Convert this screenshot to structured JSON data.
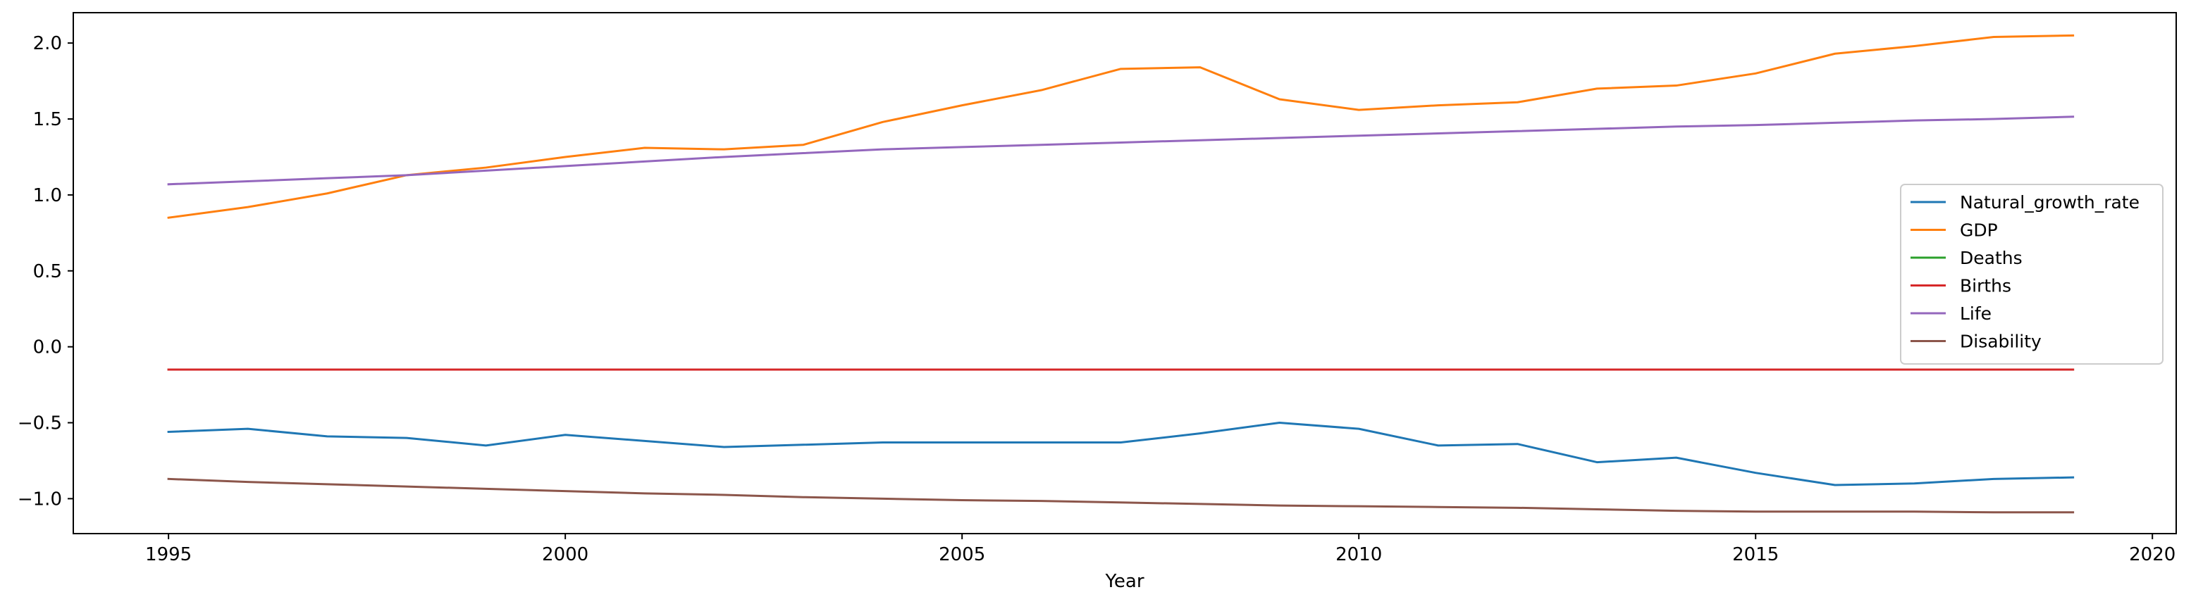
{
  "chart_data": {
    "type": "line",
    "title": "",
    "xlabel": "Year",
    "ylabel": "",
    "xlim": [
      1993.8,
      2020.3
    ],
    "ylim": [
      -1.23,
      2.2
    ],
    "xticks": [
      1995,
      2000,
      2005,
      2010,
      2015,
      2020
    ],
    "yticks": [
      -1.0,
      -0.5,
      0.0,
      0.5,
      1.0,
      1.5,
      2.0
    ],
    "grid": false,
    "legend_position": "center-right",
    "x": [
      1995,
      1996,
      1997,
      1998,
      1999,
      2000,
      2001,
      2002,
      2003,
      2004,
      2005,
      2006,
      2007,
      2008,
      2009,
      2010,
      2011,
      2012,
      2013,
      2014,
      2015,
      2016,
      2017,
      2018,
      2019
    ],
    "series": [
      {
        "name": "Natural_growth_rate",
        "color": "#1f77b4",
        "values": [
          -0.56,
          -0.54,
          -0.59,
          -0.6,
          -0.65,
          -0.58,
          -0.62,
          -0.66,
          -0.645,
          -0.63,
          -0.63,
          -0.63,
          -0.63,
          -0.57,
          -0.5,
          -0.54,
          -0.65,
          -0.64,
          -0.76,
          -0.73,
          -0.83,
          -0.91,
          -0.9,
          -0.87,
          -0.86
        ]
      },
      {
        "name": "GDP",
        "color": "#ff7f0e",
        "values": [
          0.85,
          0.92,
          1.01,
          1.13,
          1.18,
          1.25,
          1.31,
          1.3,
          1.33,
          1.48,
          1.59,
          1.69,
          1.83,
          1.84,
          1.63,
          1.56,
          1.59,
          1.61,
          1.7,
          1.72,
          1.8,
          1.93,
          1.98,
          2.04,
          2.05
        ]
      },
      {
        "name": "Deaths",
        "color": "#2ca02c",
        "values": [
          -0.15,
          -0.15,
          -0.15,
          -0.15,
          -0.15,
          -0.15,
          -0.15,
          -0.15,
          -0.15,
          -0.15,
          -0.15,
          -0.15,
          -0.15,
          -0.15,
          -0.15,
          -0.15,
          -0.15,
          -0.15,
          -0.15,
          -0.15,
          -0.15,
          -0.15,
          -0.15,
          -0.15,
          -0.15
        ]
      },
      {
        "name": "Births",
        "color": "#d62728",
        "values": [
          -0.15,
          -0.15,
          -0.15,
          -0.15,
          -0.15,
          -0.15,
          -0.15,
          -0.15,
          -0.15,
          -0.15,
          -0.15,
          -0.15,
          -0.15,
          -0.15,
          -0.15,
          -0.15,
          -0.15,
          -0.15,
          -0.15,
          -0.15,
          -0.15,
          -0.15,
          -0.15,
          -0.15,
          -0.15
        ]
      },
      {
        "name": "Life",
        "color": "#9467bd",
        "values": [
          1.07,
          1.09,
          1.11,
          1.13,
          1.16,
          1.19,
          1.22,
          1.25,
          1.275,
          1.3,
          1.315,
          1.33,
          1.345,
          1.36,
          1.375,
          1.39,
          1.405,
          1.42,
          1.435,
          1.45,
          1.46,
          1.475,
          1.49,
          1.5,
          1.515
        ]
      },
      {
        "name": "Disability",
        "color": "#8c564b",
        "values": [
          -0.87,
          -0.89,
          -0.905,
          -0.92,
          -0.935,
          -0.95,
          -0.965,
          -0.975,
          -0.99,
          -1.0,
          -1.01,
          -1.015,
          -1.025,
          -1.035,
          -1.045,
          -1.05,
          -1.055,
          -1.06,
          -1.07,
          -1.08,
          -1.085,
          -1.085,
          -1.085,
          -1.09,
          -1.09
        ]
      }
    ]
  }
}
